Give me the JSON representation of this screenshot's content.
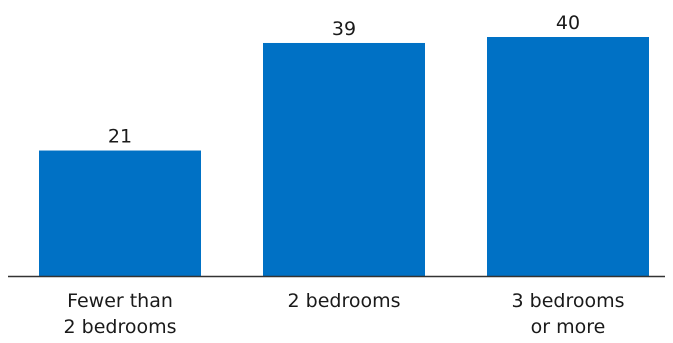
{
  "chart_data": {
    "type": "bar",
    "categories": [
      [
        "Fewer than",
        "2 bedrooms"
      ],
      [
        "2 bedrooms"
      ],
      [
        "3 bedrooms",
        "or more"
      ]
    ],
    "values": [
      21,
      39,
      40
    ],
    "data_labels": [
      "21",
      "39",
      "40"
    ],
    "title": "",
    "xlabel": "",
    "ylabel": "",
    "ylim": [
      0,
      40
    ],
    "grid": false,
    "legend": "none",
    "bar_color": "#0071c5",
    "axis_color": "#333333"
  }
}
